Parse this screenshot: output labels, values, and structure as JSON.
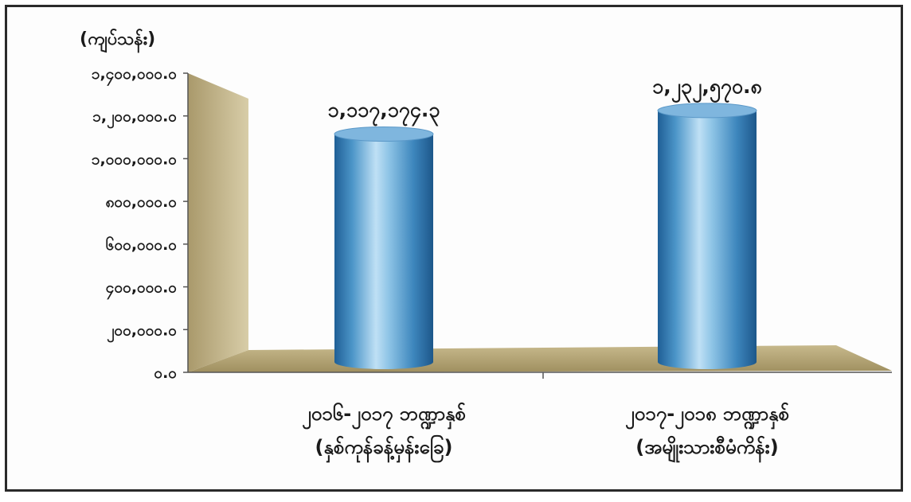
{
  "chart_data": {
    "type": "bar",
    "title": "",
    "unit_label": "(ကျပ်သန်း)",
    "ylim": [
      0,
      1400000
    ],
    "yticks": [
      {
        "value": 0,
        "label": "၀.၀"
      },
      {
        "value": 200000,
        "label": "၂၀၀,၀၀၀.၀"
      },
      {
        "value": 400000,
        "label": "၄၀၀,၀၀၀.၀"
      },
      {
        "value": 600000,
        "label": "၆၀၀,၀၀၀.၀"
      },
      {
        "value": 800000,
        "label": "၈၀၀,၀၀၀.၀"
      },
      {
        "value": 1000000,
        "label": "၁,၀၀၀,၀၀၀.၀"
      },
      {
        "value": 1200000,
        "label": "၁,၂၀၀,၀၀၀.၀"
      },
      {
        "value": 1400000,
        "label": "၁,၄၀၀,၀၀၀.၀"
      }
    ],
    "categories": [
      {
        "line1": "၂၀၁၆-၂၀၁၇ ဘဏ္ဍာနှစ်",
        "line2": "(နှစ်ကုန်ခန့်မှန်းခြေ)"
      },
      {
        "line1": "၂၀၁၇-၂၀၁၈ ဘဏ္ဍာနှစ်",
        "line2": "(အမျိုးသားစီမံကိန်း)"
      }
    ],
    "values": [
      1117174.3,
      1232570.8
    ],
    "value_labels": [
      "၁,၁၁၇,၁၇၄.၃",
      "၁,၂၃၂,၅၇၀.၈"
    ],
    "colors": {
      "bar_light": "#bfe0f5",
      "bar_mid": "#5aa7d6",
      "bar_dark": "#1f5f96",
      "wall": "#c9bb90",
      "floor": "#b5a575"
    },
    "grid": false,
    "legend": "none"
  }
}
